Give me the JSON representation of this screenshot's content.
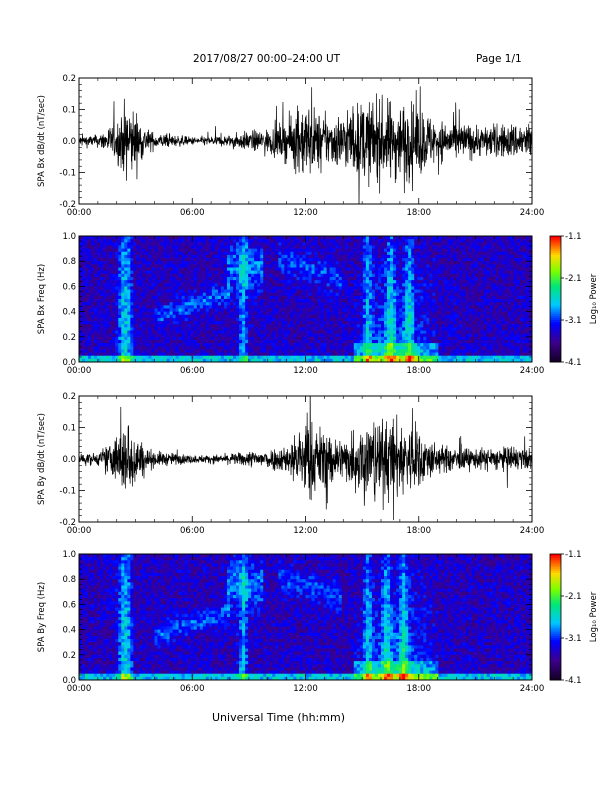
{
  "header": {
    "title": "2017/08/27  00:00–24:00 UT",
    "page": "Page 1/1"
  },
  "footer": {
    "xlabel": "Universal Time (hh:mm)"
  },
  "chart_data": [
    {
      "type": "line",
      "title": "",
      "ylabel": "SPA Bx dB/dt (nT/sec)",
      "xlabel": "",
      "xlim": [
        "00:00",
        "24:00"
      ],
      "x_ticks": [
        "00:00",
        "06:00",
        "12:00",
        "18:00",
        "24:00"
      ],
      "ylim": [
        -0.2,
        0.2
      ],
      "y_ticks": [
        "0.2",
        "0.1",
        "0.0",
        "-0.1",
        "-0.2"
      ],
      "series": [
        {
          "color": "#000000",
          "x_hours": [
            0,
            1,
            2,
            2.5,
            3,
            3.5,
            4,
            5,
            6,
            7,
            8,
            9,
            10,
            11,
            12,
            13,
            14,
            15,
            16,
            17,
            18,
            19,
            20,
            21,
            22,
            23,
            24
          ],
          "envelope": [
            0.03,
            0.03,
            0.1,
            0.2,
            0.15,
            0.07,
            0.04,
            0.03,
            0.02,
            0.025,
            0.03,
            0.05,
            0.06,
            0.1,
            0.2,
            0.12,
            0.14,
            0.2,
            0.2,
            0.2,
            0.18,
            0.1,
            0.1,
            0.08,
            0.08,
            0.09,
            0.1
          ]
        }
      ]
    },
    {
      "type": "heatmap",
      "title": "",
      "ylabel": "SPA Bx Freq (Hz)",
      "xlabel": "",
      "xlim": [
        "00:00",
        "24:00"
      ],
      "x_ticks": [
        "00:00",
        "06:00",
        "12:00",
        "18:00",
        "24:00"
      ],
      "ylim": [
        0.0,
        1.0
      ],
      "y_ticks": [
        "1.0",
        "0.8",
        "0.6",
        "0.4",
        "0.2",
        "0.0"
      ],
      "colorbar": {
        "label": "Log₁₀ Power",
        "range": [
          -4.1,
          -1.1
        ],
        "ticks": [
          "-1.1",
          "-2.1",
          "-3.1",
          "-4.1"
        ]
      }
    },
    {
      "type": "line",
      "title": "",
      "ylabel": "SPA By dB/dt (nT/sec)",
      "xlabel": "",
      "xlim": [
        "00:00",
        "24:00"
      ],
      "x_ticks": [
        "00:00",
        "06:00",
        "12:00",
        "18:00",
        "24:00"
      ],
      "ylim": [
        -0.2,
        0.2
      ],
      "y_ticks": [
        "0.2",
        "0.1",
        "0.0",
        "-0.1",
        "-0.2"
      ],
      "series": [
        {
          "color": "#000000",
          "x_hours": [
            0,
            1,
            2,
            2.5,
            3,
            3.5,
            4,
            5,
            6,
            7,
            8,
            9,
            10,
            11,
            12,
            13,
            14,
            15,
            16,
            17,
            18,
            19,
            20,
            21,
            22,
            23,
            24
          ],
          "envelope": [
            0.03,
            0.03,
            0.12,
            0.2,
            0.14,
            0.06,
            0.04,
            0.03,
            0.02,
            0.02,
            0.025,
            0.04,
            0.05,
            0.07,
            0.2,
            0.15,
            0.1,
            0.2,
            0.2,
            0.2,
            0.15,
            0.07,
            0.06,
            0.05,
            0.06,
            0.06,
            0.05
          ]
        }
      ]
    },
    {
      "type": "heatmap",
      "title": "",
      "ylabel": "SPA By Freq (Hz)",
      "xlabel": "",
      "xlim": [
        "00:00",
        "24:00"
      ],
      "x_ticks": [
        "00:00",
        "06:00",
        "12:00",
        "18:00",
        "24:00"
      ],
      "ylim": [
        0.0,
        1.0
      ],
      "y_ticks": [
        "1.0",
        "0.8",
        "0.6",
        "0.4",
        "0.2",
        "0.0"
      ],
      "colorbar": {
        "label": "Log₁₀ Power",
        "range": [
          -4.1,
          -1.1
        ],
        "ticks": [
          "-1.1",
          "-2.1",
          "-3.1",
          "-4.1"
        ]
      }
    }
  ]
}
